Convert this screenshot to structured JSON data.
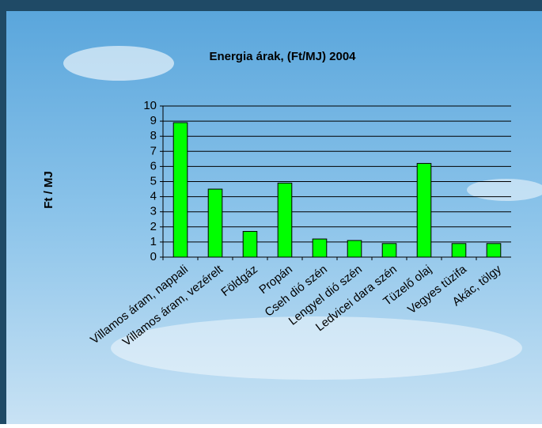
{
  "chart_data": {
    "type": "bar",
    "title": "Energia árak, (Ft/MJ) 2004",
    "y_label": "Ft / MJ",
    "categories": [
      "Villamos áram, nappali",
      "Villamos áram, vezérelt",
      "Földgáz",
      "Propán",
      "Cseh dió szén",
      "Lengyel dió szén",
      "Ledvicei dara szén",
      "Tüzelő olaj",
      "Vegyes tüzifa",
      "Akác, tölgy"
    ],
    "values": [
      8.9,
      4.5,
      1.7,
      4.9,
      1.2,
      1.1,
      0.9,
      6.2,
      0.9,
      0.9
    ],
    "color": "#00ff00",
    "ylim": [
      0,
      10
    ],
    "yticks": [
      0,
      1,
      2,
      3,
      4,
      5,
      6,
      7,
      8,
      9,
      10
    ],
    "grid": true
  }
}
